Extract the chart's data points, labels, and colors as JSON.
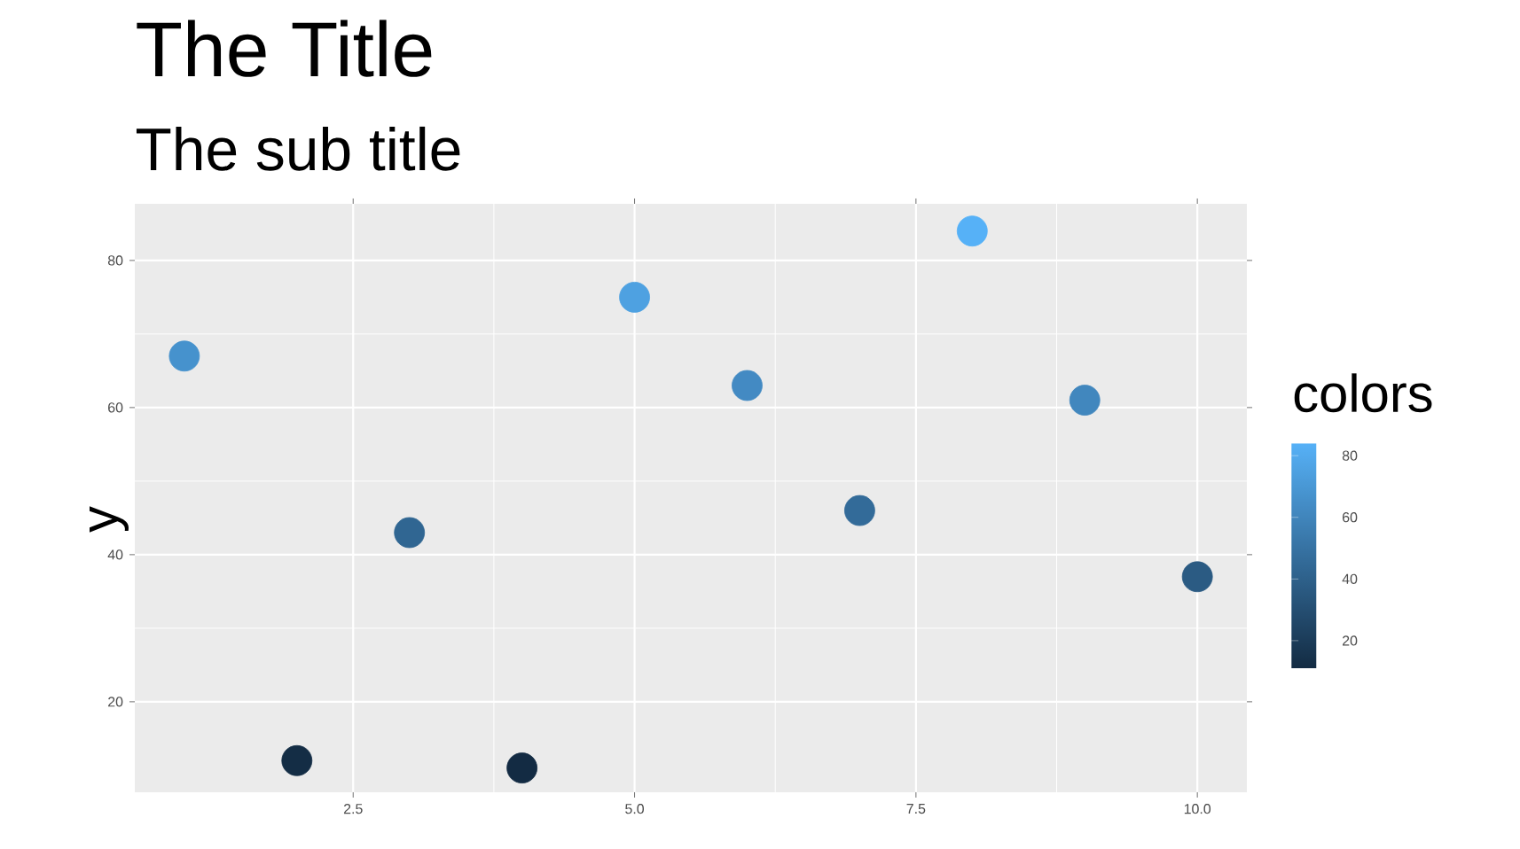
{
  "chart_data": {
    "type": "scatter",
    "title": "The Title",
    "subtitle": "The sub title",
    "ylabel": "y",
    "clabel": "colors",
    "x": [
      1,
      2,
      3,
      4,
      5,
      6,
      7,
      8,
      9,
      10
    ],
    "series": [
      {
        "values": [
          67,
          12,
          43,
          11,
          75,
          63,
          46,
          84,
          61,
          37
        ],
        "cvalues": [
          67,
          12,
          43,
          11,
          75,
          63,
          46,
          84,
          61,
          37
        ],
        "colors": [
          "#4692cd",
          "#142d45",
          "#306692",
          "#132b43",
          "#4ea1e1",
          "#438ac3",
          "#336b99",
          "#56b1f7",
          "#4187be",
          "#2b5b83"
        ]
      }
    ],
    "xlim": [
      0.56,
      10.44
    ],
    "ylim": [
      7.7,
      87.7
    ],
    "xticks": [
      {
        "value": 2.5,
        "label": "2.5"
      },
      {
        "value": 5,
        "label": "5.0"
      },
      {
        "value": 7.5,
        "label": "7.5"
      },
      {
        "value": 10,
        "label": "10.0"
      }
    ],
    "yticks": [
      20,
      40,
      60,
      80
    ],
    "clim": [
      11,
      84
    ],
    "cticks": [
      20,
      40,
      60,
      80
    ],
    "grid": true,
    "marker": "circle"
  }
}
